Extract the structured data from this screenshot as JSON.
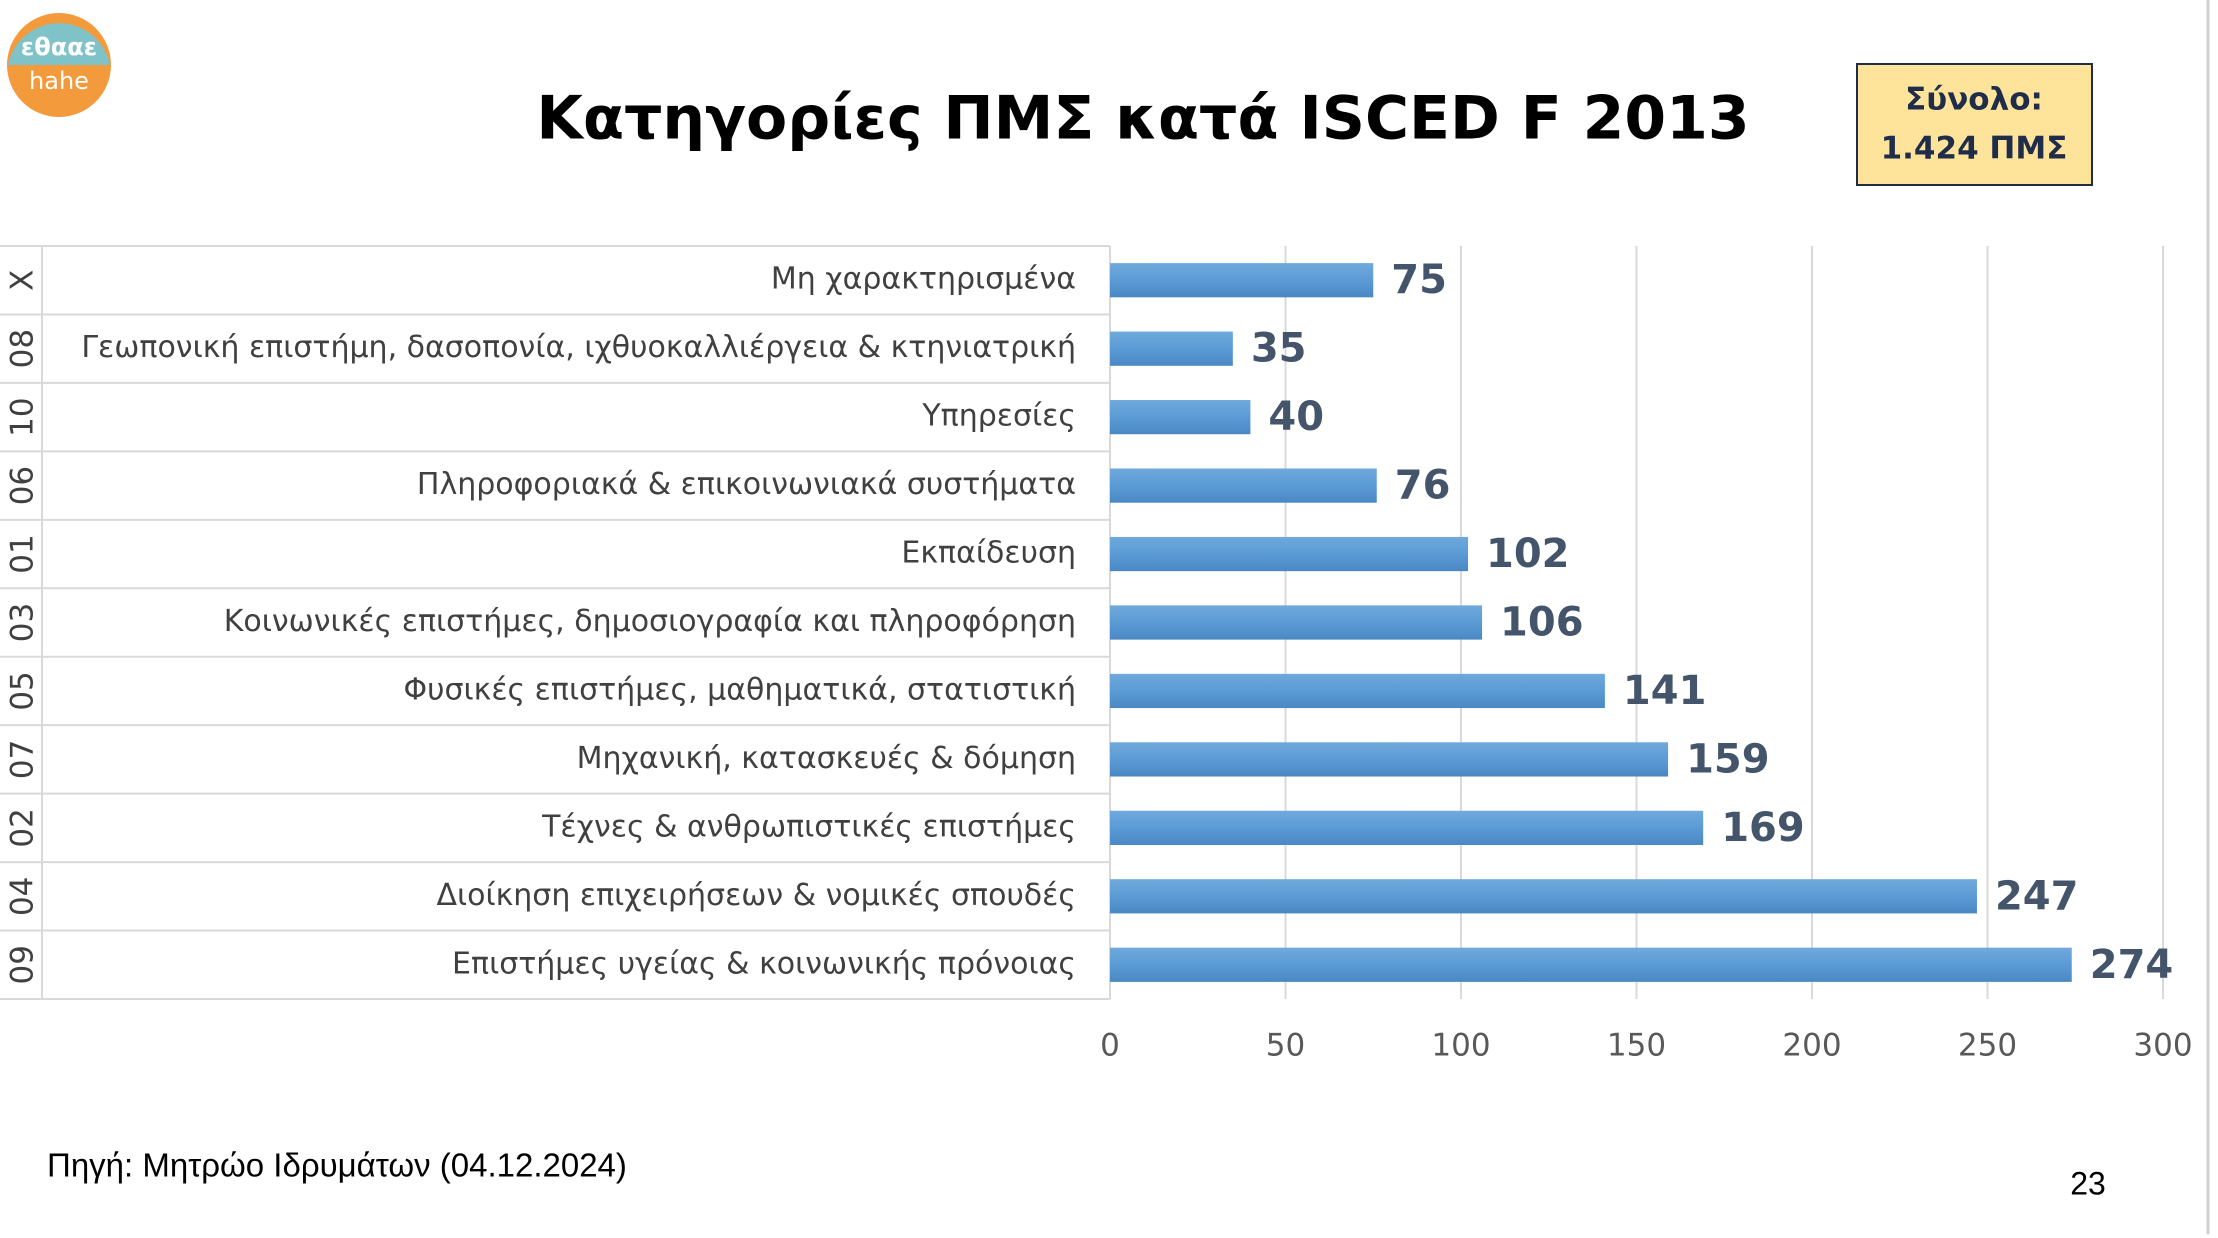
{
  "logo": {
    "top": "εθααε",
    "bottom": "hahe"
  },
  "total_box": {
    "line1": "Σύνολο:",
    "line2": "1.424 ΠΜΣ"
  },
  "source": "Πηγή: Μητρώο Ιδρυμάτων (04.12.2024)",
  "page_number": "23",
  "chart_data": {
    "type": "bar",
    "orientation": "horizontal",
    "title": "Κατηγορίες ΠΜΣ κατά ISCED F 2013",
    "category_codes": [
      "X",
      "08",
      "10",
      "06",
      "01",
      "03",
      "05",
      "07",
      "02",
      "04",
      "09"
    ],
    "categories": [
      "Μη χαρακτηρισμένα",
      "Γεωπονική επιστήμη, δασοπονία, ιχθυοκαλλιέργεια & κτηνιατρική",
      "Υπηρεσίες",
      "Πληροφοριακά & επικοινωνιακά συστήματα",
      "Εκπαίδευση",
      "Κοινωνικές επιστήμες, δημοσιογραφία και πληροφόρηση",
      "Φυσικές επιστήμες, μαθηματικά, στατιστική",
      "Μηχανική, κατασκευές & δόμηση",
      "Τέχνες & ανθρωπιστικές επιστήμες",
      "Διοίκηση επιχειρήσεων & νομικές σπουδές",
      "Επιστήμες υγείας & κοινωνικής πρόνοιας"
    ],
    "values": [
      75,
      35,
      40,
      76,
      102,
      106,
      141,
      159,
      169,
      247,
      274
    ],
    "color": "#5b9bd5",
    "xlim": [
      0,
      300
    ],
    "xticks": [
      0,
      50,
      100,
      150,
      200,
      250,
      300
    ],
    "grid": true
  }
}
